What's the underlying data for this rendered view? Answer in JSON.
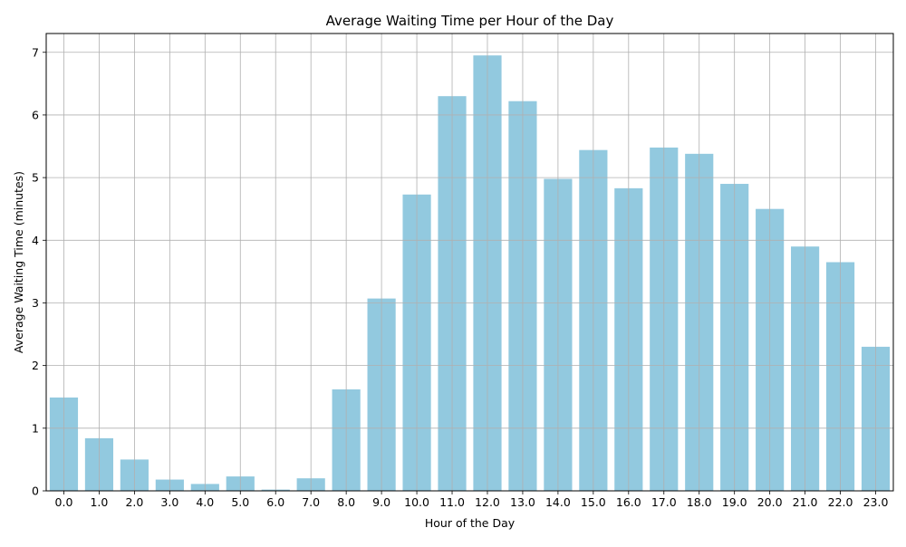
{
  "chart_data": {
    "type": "bar",
    "title": "Average Waiting Time per Hour of the Day",
    "xlabel": "Hour of the Day",
    "ylabel": "Average Waiting Time (minutes)",
    "categories": [
      "0.0",
      "1.0",
      "2.0",
      "3.0",
      "4.0",
      "5.0",
      "6.0",
      "7.0",
      "8.0",
      "9.0",
      "10.0",
      "11.0",
      "12.0",
      "13.0",
      "14.0",
      "15.0",
      "16.0",
      "17.0",
      "18.0",
      "19.0",
      "20.0",
      "21.0",
      "22.0",
      "23.0"
    ],
    "values": [
      1.49,
      0.84,
      0.5,
      0.18,
      0.11,
      0.23,
      0.02,
      0.2,
      1.62,
      3.07,
      4.73,
      6.3,
      6.95,
      6.22,
      4.98,
      5.44,
      4.83,
      5.48,
      5.38,
      4.9,
      4.5,
      3.9,
      3.65,
      2.3
    ],
    "yticks": [
      0,
      1,
      2,
      3,
      4,
      5,
      6,
      7
    ],
    "ylim": [
      0,
      7.3
    ],
    "grid": true,
    "bar_color": "#92c9df",
    "grid_color": "#b0b0b0"
  }
}
